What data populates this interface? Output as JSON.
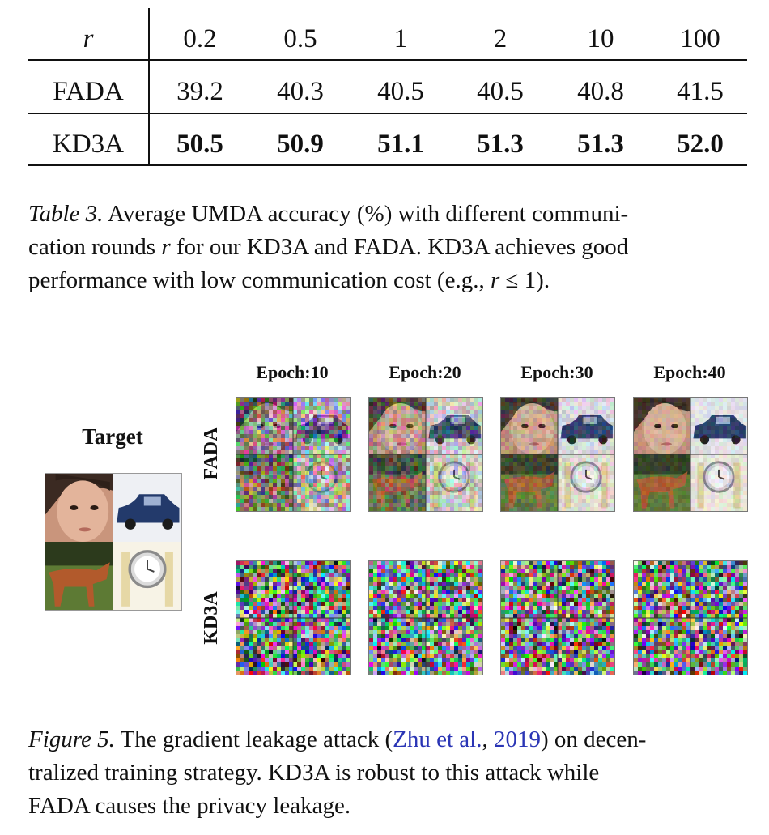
{
  "table": {
    "header_label": "r",
    "columns": [
      "0.2",
      "0.5",
      "1",
      "2",
      "10",
      "100"
    ],
    "rows": [
      {
        "label": "FADA",
        "values": [
          "39.2",
          "40.3",
          "40.5",
          "40.5",
          "40.8",
          "41.5"
        ],
        "bold": false
      },
      {
        "label": "KD3A",
        "values": [
          "50.5",
          "50.9",
          "51.1",
          "51.3",
          "51.3",
          "52.0"
        ],
        "bold": true
      }
    ]
  },
  "table_caption": {
    "label": "Table 3.",
    "line1_text": " Average UMDA accuracy (%) with different communi-",
    "line2_pre": "cation rounds ",
    "line2_var": "r",
    "line2_post": " for our KD3A and FADA. KD3A achieves good",
    "line3_pre": "performance with low communication cost (e.g., ",
    "line3_var": "r",
    "line3_post": " ≤ 1)."
  },
  "figure": {
    "target_label": "Target",
    "epochs": [
      "Epoch:10",
      "Epoch:20",
      "Epoch:30",
      "Epoch:40"
    ],
    "row_labels": [
      "FADA",
      "KD3A"
    ],
    "fada_noise_levels": [
      0.6,
      0.35,
      0.2,
      0.12
    ]
  },
  "figure_caption": {
    "label": "Figure 5.",
    "line1_pre": " The gradient leakage attack (",
    "cite_author": "Zhu et al.",
    "cite_sep": ", ",
    "cite_year": "2019",
    "line1_post": ") on decen-",
    "line2": "tralized training strategy.  KD3A is robust to this attack while",
    "line3": "FADA causes the privacy leakage."
  },
  "colors": {
    "citation": "#2a35b5",
    "text": "#111111"
  }
}
